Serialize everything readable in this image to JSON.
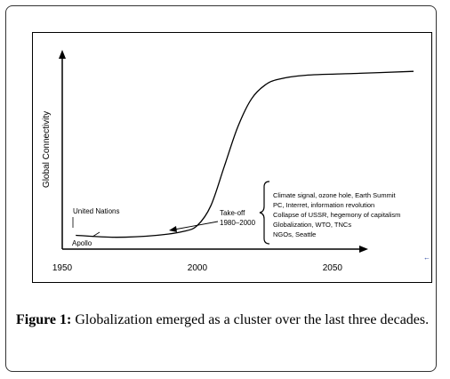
{
  "chart_data": {
    "type": "line",
    "title": "",
    "xlabel": "",
    "ylabel": "Global Connectivity",
    "x_ticks": [
      "1950",
      "2000",
      "2050"
    ],
    "xlim": [
      1950,
      2080
    ],
    "ylim": [
      0,
      100
    ],
    "series": [
      {
        "x": [
          1955,
          1970,
          1985,
          1995,
          2000,
          2005,
          2010,
          2015,
          2020,
          2025,
          2030,
          2040,
          2060,
          2080
        ],
        "y": [
          7,
          6,
          7,
          9,
          12,
          22,
          42,
          62,
          76,
          83,
          86,
          88,
          89,
          90
        ]
      }
    ],
    "annotations": {
      "united_nations": "United Nations",
      "apollo": "Apollo",
      "takeoff_line1": "Take-off",
      "takeoff_line2": "1980–2000",
      "events": [
        "Climate signal, ozone hole, Earth Summit",
        "PC, Interret, information revolution",
        "Collapse of USSR, hegemony of capitalism",
        "Globalization, WTO, TNCs",
        "NGOs, Seattle"
      ]
    }
  },
  "caption": {
    "label": "Figure 1:",
    "text": " Globalization emerged as a cluster over the last three decades."
  },
  "colors": {
    "line": "#000000",
    "marker": "#2040a0"
  }
}
